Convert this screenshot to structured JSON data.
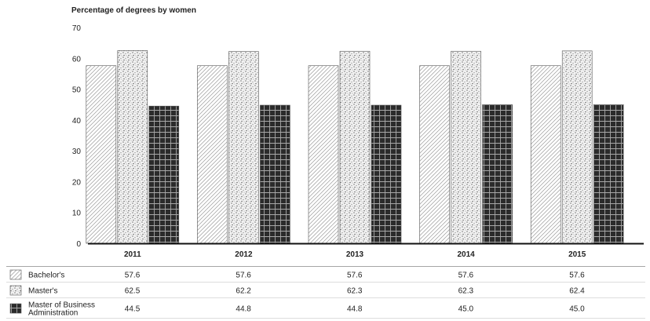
{
  "chart_data": {
    "type": "bar",
    "title": "Percentage of degrees by women",
    "categories": [
      "2011",
      "2012",
      "2013",
      "2014",
      "2015"
    ],
    "ylim": [
      0,
      70
    ],
    "yticks": [
      0,
      10,
      20,
      30,
      40,
      50,
      60,
      70
    ],
    "grid": false,
    "legend": "table below chart",
    "series": [
      {
        "name": "Bachelor's",
        "values": [
          57.6,
          57.6,
          57.6,
          57.6,
          57.6
        ],
        "labels": [
          "57.6",
          "57.6",
          "57.6",
          "57.6",
          "57.6"
        ],
        "pattern": "diagonal"
      },
      {
        "name": "Master's",
        "values": [
          62.5,
          62.2,
          62.3,
          62.3,
          62.4
        ],
        "labels": [
          "62.5",
          "62.2",
          "62.3",
          "62.3",
          "62.4"
        ],
        "pattern": "stipple"
      },
      {
        "name": "Master of Business Administration",
        "name_lines": [
          "Master of Business",
          "Administration"
        ],
        "values": [
          44.5,
          44.8,
          44.8,
          45.0,
          45.0
        ],
        "labels": [
          "44.5",
          "44.8",
          "44.8",
          "45.0",
          "45.0"
        ],
        "pattern": "grid"
      }
    ]
  }
}
